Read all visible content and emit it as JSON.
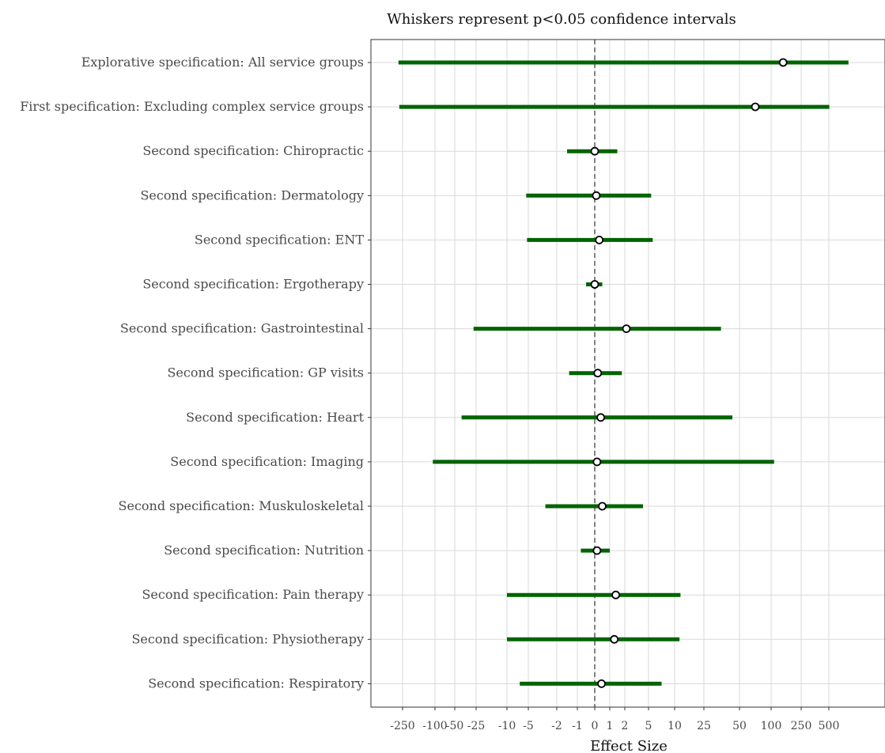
{
  "chart_data": {
    "type": "forest",
    "title": "Whiskers represent p<0.05  confidence intervals",
    "xlabel": "Effect Size",
    "ylabel": "",
    "x_scale": "pseudo-log (signed)",
    "xticks": [
      -250,
      -100,
      -50,
      -25,
      -10,
      -5,
      -2,
      -1,
      0,
      1,
      2,
      5,
      10,
      25,
      50,
      100,
      250,
      500
    ],
    "xtick_labels": [
      "-250",
      "-100",
      "-50",
      "-25",
      "-10",
      "-5",
      "-2",
      "-1",
      "0",
      "1",
      "2",
      "5",
      "10",
      "25",
      "50",
      "100",
      "250",
      "500"
    ],
    "reference_line": 0,
    "grid": true,
    "series": [
      {
        "label": "Explorative specification: All service groups",
        "estimate": 160,
        "lower": -350,
        "upper": 900
      },
      {
        "label": "First specification: Excluding complex service groups",
        "estimate": 75,
        "lower": -330,
        "upper": 510
      },
      {
        "label": "Second specification: Chiropractic",
        "estimate": 0,
        "lower": -1.5,
        "upper": 1.5
      },
      {
        "label": "Second specification: Dermatology",
        "estimate": 0.1,
        "lower": -5.5,
        "upper": 5.5
      },
      {
        "label": "Second specification: ENT",
        "estimate": 0.3,
        "lower": -5.3,
        "upper": 5.8
      },
      {
        "label": "Second specification: Ergotherapy",
        "estimate": 0,
        "lower": -0.5,
        "upper": 0.5
      },
      {
        "label": "Second specification: Gastrointestinal",
        "estimate": 2.2,
        "lower": -28,
        "upper": 37
      },
      {
        "label": "Second specification: GP visits",
        "estimate": 0.2,
        "lower": -1.4,
        "upper": 1.8
      },
      {
        "label": "Second specification: Heart",
        "estimate": 0.4,
        "lower": -42,
        "upper": 45
      },
      {
        "label": "Second specification: Imaging",
        "estimate": 0.15,
        "lower": -110,
        "upper": 115
      },
      {
        "label": "Second specification: Muskuloskeletal",
        "estimate": 0.5,
        "lower": -3.2,
        "upper": 4.3
      },
      {
        "label": "Second specification: Nutrition",
        "estimate": 0.15,
        "lower": -0.8,
        "upper": 1
      },
      {
        "label": "Second specification: Pain therapy",
        "estimate": 1.4,
        "lower": -10,
        "upper": 13
      },
      {
        "label": "Second specification: Physiotherapy",
        "estimate": 1.3,
        "lower": -10,
        "upper": 12.5
      },
      {
        "label": "Second specification: Respiratory",
        "estimate": 0.45,
        "lower": -7,
        "upper": 7.5
      }
    ],
    "colors": {
      "whisker": "#006400",
      "point_fill": "#ffffff",
      "point_stroke": "#000000",
      "grid": "#d9d9d9",
      "refline": "#333333"
    }
  }
}
